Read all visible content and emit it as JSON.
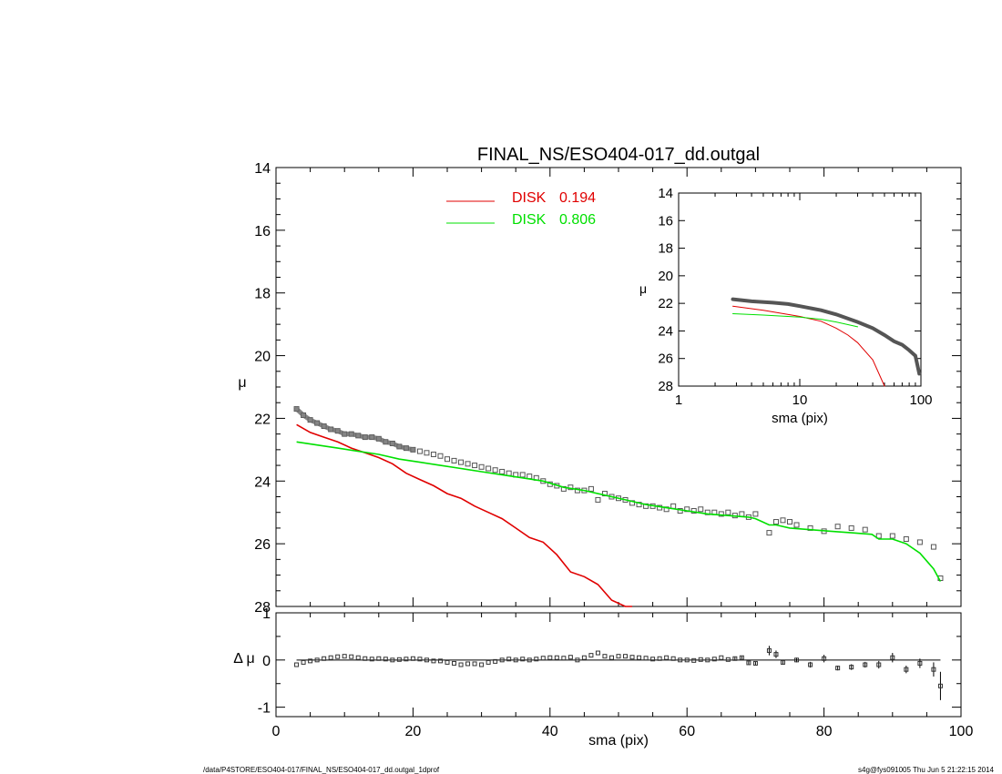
{
  "chart_data": [
    {
      "type": "scatter",
      "panel": "main",
      "title": "FINAL_NS/ESO404-017_dd.outgal",
      "xlabel": "",
      "ylabel": "μ",
      "xlim": [
        0,
        100
      ],
      "ylim": [
        28,
        14
      ],
      "y_inverted": true,
      "yticks": [
        14,
        16,
        18,
        20,
        22,
        24,
        26,
        28
      ],
      "legend_position": "top-center",
      "legend": [
        {
          "name": "DISK",
          "value": "0.194",
          "color": "#e00000"
        },
        {
          "name": "DISK",
          "value": "0.806",
          "color": "#00e000"
        }
      ],
      "series": [
        {
          "name": "data",
          "marker": "open-square",
          "color": "#000000",
          "x": [
            3,
            4,
            5,
            6,
            7,
            8,
            9,
            10,
            11,
            12,
            13,
            14,
            15,
            16,
            17,
            18,
            19,
            20,
            21,
            22,
            23,
            24,
            25,
            26,
            27,
            28,
            29,
            30,
            31,
            32,
            33,
            34,
            35,
            36,
            37,
            38,
            39,
            40,
            41,
            42,
            43,
            44,
            45,
            46,
            47,
            48,
            49,
            50,
            51,
            52,
            53,
            54,
            55,
            56,
            57,
            58,
            59,
            60,
            61,
            62,
            63,
            64,
            65,
            66,
            67,
            68,
            69,
            70,
            72,
            73,
            74,
            75,
            76,
            78,
            80,
            82,
            84,
            86,
            88,
            90,
            92,
            94,
            96,
            97
          ],
          "y": [
            21.7,
            21.9,
            22.05,
            22.15,
            22.25,
            22.35,
            22.4,
            22.5,
            22.5,
            22.55,
            22.6,
            22.6,
            22.65,
            22.75,
            22.8,
            22.9,
            22.95,
            23.0,
            23.05,
            23.1,
            23.15,
            23.2,
            23.3,
            23.35,
            23.4,
            23.45,
            23.5,
            23.55,
            23.6,
            23.65,
            23.7,
            23.75,
            23.8,
            23.8,
            23.85,
            23.9,
            24.0,
            24.1,
            24.15,
            24.25,
            24.2,
            24.3,
            24.3,
            24.25,
            24.6,
            24.4,
            24.5,
            24.55,
            24.6,
            24.7,
            24.75,
            24.8,
            24.8,
            24.85,
            24.9,
            24.8,
            24.95,
            24.9,
            24.95,
            24.9,
            25.0,
            25.0,
            25.05,
            25.0,
            25.1,
            25.05,
            25.15,
            25.05,
            25.65,
            25.3,
            25.25,
            25.3,
            25.4,
            25.5,
            25.6,
            25.45,
            25.5,
            25.55,
            25.75,
            25.75,
            25.85,
            25.95,
            26.1,
            27.1
          ]
        },
        {
          "name": "DISK 0.194",
          "color": "#e00000",
          "x": [
            3,
            5,
            7,
            9,
            11,
            13,
            15,
            17,
            19,
            21,
            23,
            25,
            27,
            29,
            31,
            33,
            35,
            37,
            39,
            41,
            43,
            45,
            47,
            49,
            51,
            52
          ],
          "y": [
            22.2,
            22.45,
            22.6,
            22.75,
            22.95,
            23.1,
            23.25,
            23.45,
            23.75,
            23.95,
            24.15,
            24.4,
            24.55,
            24.8,
            25.0,
            25.2,
            25.5,
            25.8,
            25.95,
            26.35,
            26.9,
            27.05,
            27.3,
            27.8,
            28.0,
            28.0
          ]
        },
        {
          "name": "DISK 0.806",
          "color": "#00e000",
          "x": [
            3,
            6,
            9,
            12,
            15,
            18,
            21,
            24,
            27,
            30,
            33,
            36,
            39,
            42,
            45,
            48,
            51,
            54,
            57,
            60,
            63,
            66,
            69,
            70,
            71,
            72,
            73,
            75,
            78,
            81,
            84,
            87,
            88,
            90,
            92,
            94,
            96,
            97
          ],
          "y": [
            22.75,
            22.85,
            22.95,
            23.05,
            23.15,
            23.3,
            23.4,
            23.5,
            23.6,
            23.7,
            23.8,
            23.9,
            24.0,
            24.2,
            24.3,
            24.45,
            24.6,
            24.75,
            24.85,
            24.95,
            25.05,
            25.1,
            25.15,
            25.2,
            25.3,
            25.4,
            25.4,
            25.5,
            25.55,
            25.6,
            25.65,
            25.7,
            25.85,
            25.85,
            26.0,
            26.3,
            26.8,
            27.2
          ]
        }
      ]
    },
    {
      "type": "line",
      "panel": "inset",
      "xlabel": "sma (pix)",
      "ylabel": "μ",
      "xscale": "log",
      "xlim": [
        1,
        100
      ],
      "ylim": [
        28,
        14
      ],
      "y_inverted": true,
      "xticks": [
        "1",
        "10",
        "100"
      ],
      "yticks": [
        14,
        16,
        18,
        20,
        22,
        24,
        26,
        28
      ],
      "series": [
        {
          "name": "data",
          "color": "#000000",
          "x": [
            2.8,
            4,
            6,
            8,
            10,
            15,
            20,
            30,
            40,
            50,
            60,
            70,
            80,
            90,
            97
          ],
          "y": [
            21.7,
            21.85,
            21.95,
            22.05,
            22.2,
            22.5,
            22.8,
            23.35,
            23.8,
            24.3,
            24.75,
            25.0,
            25.4,
            25.8,
            27.1
          ]
        },
        {
          "name": "DISK 0.194",
          "color": "#e00000",
          "x": [
            2.8,
            5,
            10,
            15,
            20,
            25,
            30,
            40,
            50
          ],
          "y": [
            22.2,
            22.5,
            22.95,
            23.3,
            23.8,
            24.3,
            24.85,
            26.1,
            28.0
          ]
        },
        {
          "name": "DISK 0.806",
          "color": "#00e000",
          "x": [
            2.8,
            5,
            10,
            15,
            20,
            30
          ],
          "y": [
            22.75,
            22.85,
            23.0,
            23.15,
            23.35,
            23.7
          ]
        }
      ]
    },
    {
      "type": "scatter",
      "panel": "residual",
      "xlabel": "sma (pix)",
      "ylabel": "Δ μ",
      "xlim": [
        0,
        100
      ],
      "ylim": [
        -1.2,
        1.0
      ],
      "yticks": [
        "1",
        "0",
        "-1"
      ],
      "xticks": [
        "0",
        "20",
        "40",
        "60",
        "80",
        "100"
      ],
      "series": [
        {
          "name": "residuals",
          "marker": "open-square",
          "color": "#000000",
          "x": [
            3,
            4,
            5,
            6,
            7,
            8,
            9,
            10,
            11,
            12,
            13,
            14,
            15,
            16,
            17,
            18,
            19,
            20,
            21,
            22,
            23,
            24,
            25,
            26,
            27,
            28,
            29,
            30,
            31,
            32,
            33,
            34,
            35,
            36,
            37,
            38,
            39,
            40,
            41,
            42,
            43,
            44,
            45,
            46,
            47,
            48,
            49,
            50,
            51,
            52,
            53,
            54,
            55,
            56,
            57,
            58,
            59,
            60,
            61,
            62,
            63,
            64,
            65,
            66,
            67,
            68,
            69,
            70,
            72,
            73,
            74,
            76,
            78,
            80,
            82,
            84,
            86,
            88,
            90,
            92,
            94,
            96,
            97
          ],
          "y": [
            -0.1,
            -0.05,
            -0.02,
            0.0,
            0.03,
            0.05,
            0.07,
            0.08,
            0.07,
            0.05,
            0.03,
            0.02,
            0.03,
            0.02,
            0.0,
            0.01,
            0.02,
            0.03,
            0.02,
            0.0,
            -0.02,
            -0.02,
            -0.05,
            -0.07,
            -0.1,
            -0.08,
            -0.08,
            -0.1,
            -0.05,
            -0.03,
            0.0,
            0.02,
            0.0,
            0.02,
            0.0,
            0.02,
            0.04,
            0.05,
            0.05,
            0.04,
            0.06,
            0.0,
            0.05,
            0.1,
            0.15,
            0.08,
            0.05,
            0.08,
            0.08,
            0.06,
            0.05,
            0.04,
            0.02,
            0.03,
            0.05,
            0.03,
            0.0,
            0.0,
            -0.01,
            0.01,
            0.0,
            0.02,
            0.05,
            0.01,
            0.03,
            0.05,
            -0.06,
            -0.07,
            0.2,
            0.12,
            -0.05,
            0.0,
            -0.1,
            0.03,
            -0.17,
            -0.15,
            -0.1,
            -0.1,
            0.05,
            -0.2,
            -0.07,
            -0.2,
            -0.55
          ],
          "yerr": [
            0.02,
            0.02,
            0.02,
            0.02,
            0.02,
            0.02,
            0.02,
            0.02,
            0.02,
            0.02,
            0.02,
            0.02,
            0.02,
            0.02,
            0.02,
            0.02,
            0.02,
            0.02,
            0.02,
            0.02,
            0.02,
            0.02,
            0.02,
            0.02,
            0.02,
            0.02,
            0.02,
            0.02,
            0.02,
            0.02,
            0.02,
            0.02,
            0.02,
            0.02,
            0.02,
            0.02,
            0.02,
            0.02,
            0.02,
            0.02,
            0.02,
            0.02,
            0.02,
            0.02,
            0.02,
            0.02,
            0.02,
            0.02,
            0.02,
            0.02,
            0.02,
            0.02,
            0.02,
            0.02,
            0.02,
            0.02,
            0.02,
            0.02,
            0.02,
            0.02,
            0.02,
            0.02,
            0.02,
            0.02,
            0.03,
            0.03,
            0.03,
            0.03,
            0.1,
            0.08,
            0.05,
            0.05,
            0.06,
            0.08,
            0.05,
            0.06,
            0.06,
            0.08,
            0.1,
            0.08,
            0.1,
            0.15,
            0.3
          ]
        }
      ]
    }
  ],
  "footer": {
    "left": "/data/P4STORE/ESO404-017/FINAL_NS/ESO404-017_dd.outgal_1dprof",
    "right": "s4g@fys091005  Thu Jun  5 21:22:15 2014"
  }
}
